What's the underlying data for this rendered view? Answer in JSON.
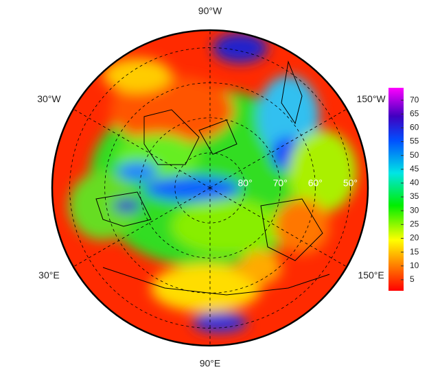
{
  "chart_data": {
    "type": "polar-map",
    "longitude_labels": [
      {
        "value": -90,
        "label": "90°W"
      },
      {
        "value": -30,
        "label": "30°W"
      },
      {
        "value": -150,
        "label": "150°W"
      },
      {
        "value": 30,
        "label": "30°E"
      },
      {
        "value": 150,
        "label": "150°E"
      },
      {
        "value": 90,
        "label": "90°E"
      }
    ],
    "rlim": [
      90,
      45
    ],
    "latitude_ticks": [
      {
        "value": 80,
        "label": "80°"
      },
      {
        "value": 70,
        "label": "70°"
      },
      {
        "value": 60,
        "label": "60°"
      },
      {
        "value": 50,
        "label": "50°"
      }
    ],
    "colorbar": {
      "lim": [
        1,
        74.5
      ],
      "ticks": [
        5,
        10,
        15,
        20,
        25,
        30,
        35,
        40,
        45,
        50,
        55,
        60,
        65,
        70
      ]
    }
  }
}
